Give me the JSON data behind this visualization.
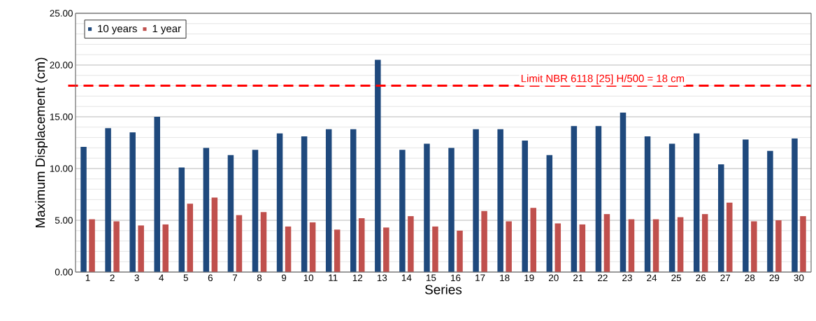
{
  "chart_data": {
    "type": "bar",
    "xlabel": "Series",
    "ylabel": "Maximum Displacement (cm)",
    "categories": [
      "1",
      "2",
      "3",
      "4",
      "5",
      "6",
      "7",
      "8",
      "9",
      "10",
      "11",
      "12",
      "13",
      "14",
      "15",
      "16",
      "17",
      "18",
      "19",
      "20",
      "21",
      "22",
      "23",
      "24",
      "25",
      "26",
      "27",
      "28",
      "29",
      "30"
    ],
    "series": [
      {
        "name": "10 years",
        "color": "#1f497d",
        "values": [
          12.1,
          13.9,
          13.5,
          15.0,
          10.1,
          12.0,
          11.3,
          11.8,
          13.4,
          13.1,
          13.8,
          13.8,
          20.5,
          11.8,
          12.4,
          12.0,
          13.8,
          13.8,
          12.7,
          11.3,
          14.1,
          14.1,
          15.4,
          13.1,
          12.4,
          13.4,
          10.4,
          12.8,
          11.7,
          12.9
        ]
      },
      {
        "name": "1 year",
        "color": "#c0504d",
        "values": [
          5.1,
          4.9,
          4.5,
          4.6,
          6.6,
          7.2,
          5.5,
          5.8,
          4.4,
          4.8,
          4.1,
          5.2,
          4.3,
          5.4,
          4.4,
          4.0,
          5.9,
          4.9,
          6.2,
          4.7,
          4.6,
          5.6,
          5.1,
          5.1,
          5.3,
          5.6,
          6.7,
          4.9,
          5.0,
          5.4
        ]
      }
    ],
    "ylim": [
      0,
      25
    ],
    "yticks": [
      {
        "value": 0,
        "label": "0.00"
      },
      {
        "value": 5,
        "label": "5.00"
      },
      {
        "value": 10,
        "label": "10.00"
      },
      {
        "value": 15,
        "label": "15.00"
      },
      {
        "value": 20,
        "label": "20.00"
      },
      {
        "value": 25,
        "label": "25.00"
      }
    ],
    "ref_lines": [
      {
        "axis": "y",
        "value": 18,
        "label": "Limit NBR 6118 [25] H/500 = 18 cm",
        "color": "#ff0000",
        "line_style": "dashed"
      }
    ],
    "grid": "y",
    "legend": "top left"
  }
}
